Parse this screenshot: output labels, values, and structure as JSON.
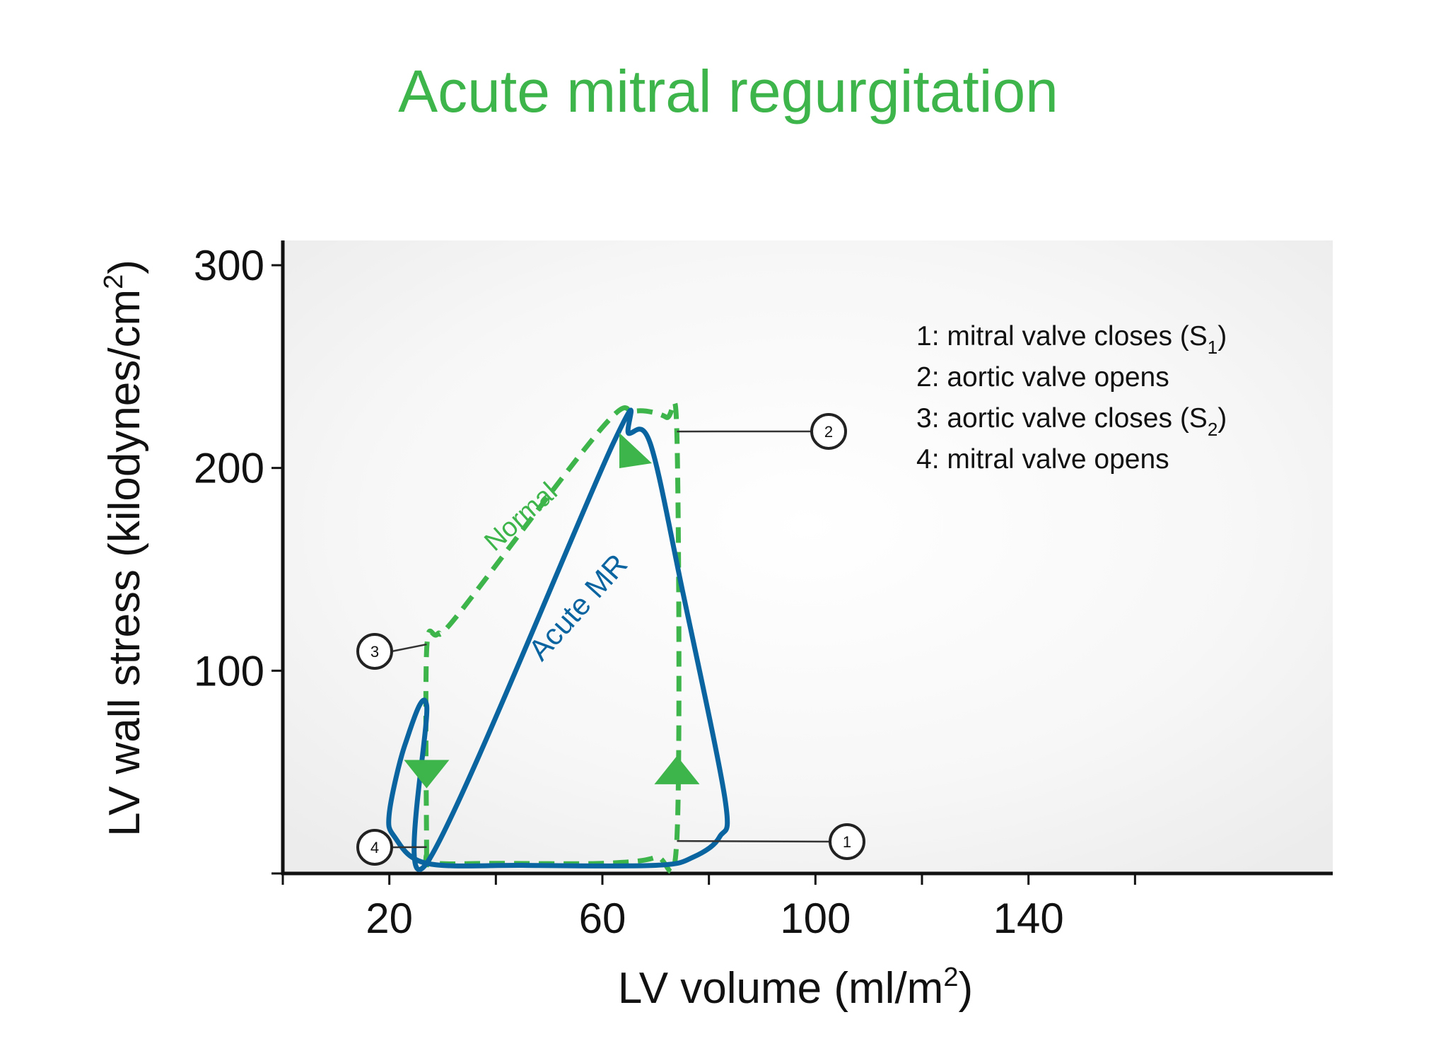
{
  "title": "Acute mitral regurgitation",
  "chart_data": {
    "type": "line",
    "title": "Acute mitral regurgitation",
    "xlabel": "LV volume (ml/m²)",
    "ylabel": "LV wall stress (kilodynes/cm²)",
    "xlim": [
      0,
      163
    ],
    "ylim": [
      0,
      312
    ],
    "x_ticks": [
      0,
      20,
      40,
      60,
      80,
      100,
      120,
      140,
      160
    ],
    "x_tick_labels": [
      "20",
      "60",
      "100",
      "140"
    ],
    "x_tick_label_values": [
      20,
      60,
      100,
      140
    ],
    "y_ticks": [
      0,
      100,
      200,
      300
    ],
    "y_tick_labels": [
      "100",
      "200",
      "300"
    ],
    "y_tick_label_values": [
      100,
      200,
      300
    ],
    "grid": false,
    "colors": {
      "normal": "#3db54a",
      "acute_mr": "#0a64a0",
      "title": "#3db54a"
    },
    "series": [
      {
        "name": "Normal",
        "style": "dashed",
        "color": "#3db54a",
        "x": [
          27,
          27,
          29,
          33,
          60,
          66,
          72,
          74,
          74,
          70,
          60,
          40,
          29,
          27
        ],
        "y": [
          9,
          110,
          118,
          128,
          220,
          228,
          225,
          215,
          18,
          8,
          5,
          5,
          5,
          9
        ]
      },
      {
        "name": "Acute MR",
        "style": "solid",
        "color": "#0a64a0",
        "x": [
          27,
          62,
          65,
          69,
          75,
          83,
          82,
          77,
          70,
          45,
          27,
          21,
          20,
          23,
          27
        ],
        "y": [
          5,
          212,
          217,
          212,
          140,
          37,
          18,
          8,
          4,
          4,
          5,
          18,
          30,
          64,
          83
        ]
      }
    ],
    "annotations": [
      {
        "id": "1",
        "label": "1",
        "x": 74,
        "y": 16,
        "text": "1: mitral valve closes (S",
        "sub": "1",
        "suffix": ")"
      },
      {
        "id": "2",
        "label": "2",
        "x": 74,
        "y": 218,
        "text": "2: aortic valve opens",
        "sub": "",
        "suffix": ""
      },
      {
        "id": "3",
        "label": "3",
        "x": 27,
        "y": 113,
        "text": "3: aortic valve closes (S",
        "sub": "2",
        "suffix": ")"
      },
      {
        "id": "4",
        "label": "4",
        "x": 27,
        "y": 13,
        "text": "4: mitral valve opens",
        "sub": "",
        "suffix": ""
      }
    ]
  }
}
